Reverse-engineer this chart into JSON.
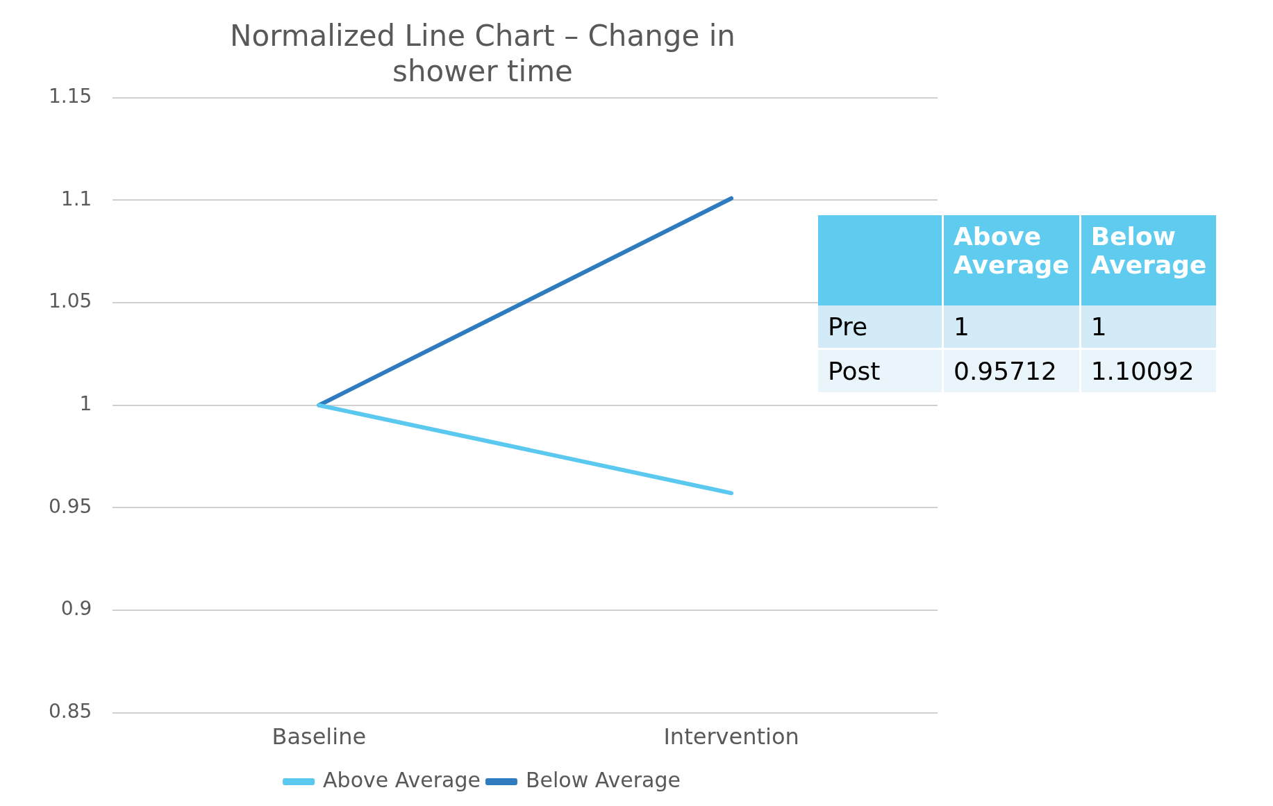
{
  "chart_data": {
    "type": "line",
    "title": "Normalized Line Chart – Change in shower time",
    "categories": [
      "Baseline",
      "Intervention"
    ],
    "series": [
      {
        "name": "Above Average",
        "color": "#5bc8ef",
        "values": [
          1,
          0.95712
        ]
      },
      {
        "name": "Below Average",
        "color": "#2e7bbf",
        "values": [
          1,
          1.10092
        ]
      }
    ],
    "ylim": [
      0.85,
      1.15
    ],
    "yticks": [
      0.85,
      0.9,
      0.95,
      1,
      1.05,
      1.1,
      1.15
    ],
    "grid": "y",
    "legend": "bottom",
    "marker": "none",
    "annotations": [
      "Pre",
      "1",
      "1",
      "Post",
      "0.95712",
      "1.10092"
    ]
  }
}
